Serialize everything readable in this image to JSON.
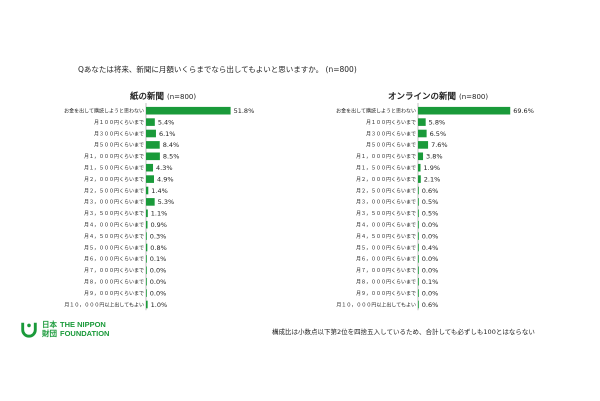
{
  "question": "Qあなたは将来、新聞に月額いくらまでなら出してもよいと思いますか。 (n=800)",
  "note": "構成比は小数点以下第2位を四捨五入しているため、合計しても必ずしも100とはならない",
  "logo": {
    "jp_line1": "日本",
    "jp_line2": "財団",
    "en_line1": "THE NIPPON",
    "en_line2": "FOUNDATION"
  },
  "colors": {
    "bar": "#1a9a3a",
    "brand": "#1a9a3a"
  },
  "chart_data": [
    {
      "type": "bar",
      "orientation": "horizontal",
      "title": "紙の新聞",
      "subtitle": "(n=800)",
      "unit": "%",
      "categories": [
        "お金を出して購読しようと思わない",
        "月１００円くらいまで",
        "月３００円くらいまで",
        "月５００円くらいまで",
        "月１，０００円くらいまで",
        "月１，５００円くらいまで",
        "月２，０００円くらいまで",
        "月２，５００円くらいまで",
        "月３，０００円くらいまで",
        "月３，５００円くらいまで",
        "月４，０００円くらいまで",
        "月４，５００円くらいまで",
        "月５，０００円くらいまで",
        "月６，０００円くらいまで",
        "月７，０００円くらいまで",
        "月８，０００円くらいまで",
        "月９，０００円くらいまで",
        "月１０，０００円以上出してもよい"
      ],
      "values": [
        51.8,
        5.4,
        6.1,
        8.4,
        8.5,
        4.3,
        4.9,
        1.4,
        5.3,
        1.1,
        0.9,
        0.3,
        0.8,
        0.1,
        0.0,
        0.0,
        0.0,
        1.0
      ],
      "labels": [
        "51.8%",
        "5.4%",
        "6.1%",
        "8.4%",
        "8.5%",
        "4.3%",
        "4.9%",
        "1.4%",
        "5.3%",
        "1.1%",
        "0.9%",
        "0.3%",
        "0.8%",
        "0.1%",
        "0.0%",
        "0.0%",
        "0.0%",
        "1.0%"
      ],
      "xlim": [
        0,
        60
      ]
    },
    {
      "type": "bar",
      "orientation": "horizontal",
      "title": "オンラインの新聞",
      "subtitle": "(n=800)",
      "unit": "%",
      "categories": [
        "お金を出して購読しようと思わない",
        "月１００円くらいまで",
        "月３００円くらいまで",
        "月５００円くらいまで",
        "月１，０００円くらいまで",
        "月１，５００円くらいまで",
        "月２，０００円くらいまで",
        "月２，５００円くらいまで",
        "月３，０００円くらいまで",
        "月３，５００円くらいまで",
        "月４，０００円くらいまで",
        "月４，５００円くらいまで",
        "月５，０００円くらいまで",
        "月６，０００円くらいまで",
        "月７，０００円くらいまで",
        "月８，０００円くらいまで",
        "月９，０００円くらいまで",
        "月１０，０００円以上出してもよい"
      ],
      "values": [
        69.6,
        5.8,
        6.5,
        7.6,
        3.8,
        1.9,
        2.1,
        0.6,
        0.5,
        0.5,
        0.0,
        0.0,
        0.4,
        0.0,
        0.0,
        0.1,
        0.0,
        0.6
      ],
      "labels": [
        "69.6%",
        "5.8%",
        "6.5%",
        "7.6%",
        "3.8%",
        "1.9%",
        "2.1%",
        "0.6%",
        "0.5%",
        "0.5%",
        "0.0%",
        "0.0%",
        "0.4%",
        "0.0%",
        "0.0%",
        "0.1%",
        "0.0%",
        "0.6%"
      ],
      "xlim": [
        0,
        80
      ]
    }
  ]
}
